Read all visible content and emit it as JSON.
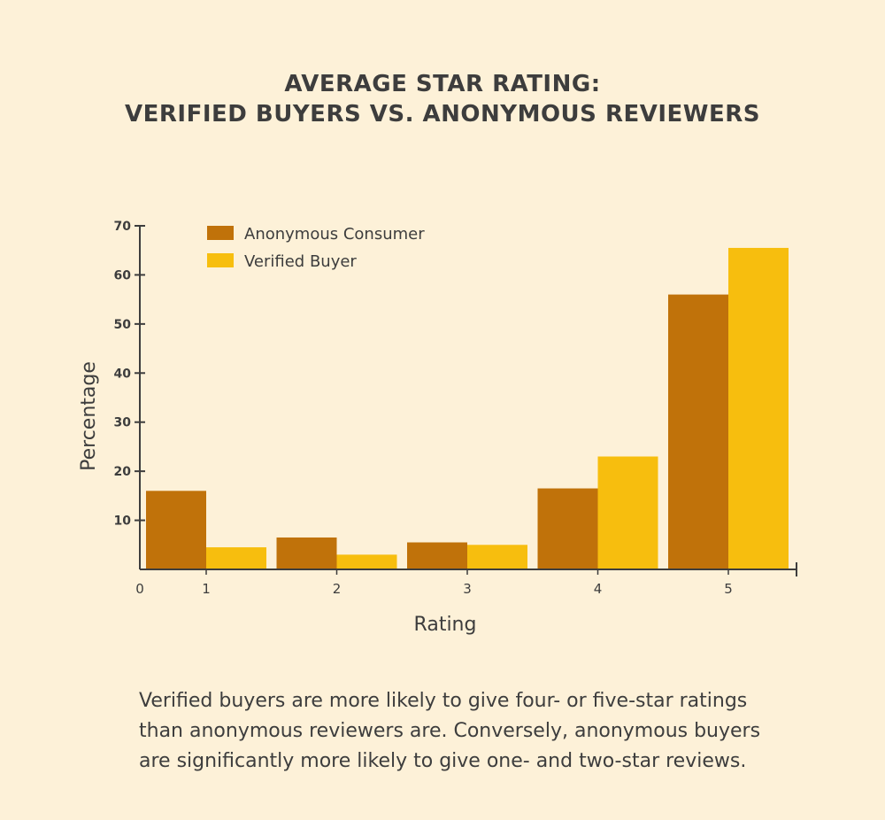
{
  "chart_data": {
    "type": "bar",
    "title_lines": [
      "AVERAGE STAR RATING:",
      "VERIFIED BUYERS VS. ANONYMOUS REVIEWERS"
    ],
    "xlabel": "Rating",
    "ylabel": "Percentage",
    "categories": [
      "1",
      "2",
      "3",
      "4",
      "5"
    ],
    "x_origin_label": "0",
    "yticks": [
      10,
      20,
      30,
      40,
      50,
      60,
      70
    ],
    "ylim": [
      0,
      70
    ],
    "grid": false,
    "legend_position": "top-left",
    "series": [
      {
        "name": "Anonymous Consumer",
        "color": "#c0720a",
        "values": [
          16,
          6.5,
          5.5,
          16.5,
          56
        ]
      },
      {
        "name": "Verified Buyer",
        "color": "#f7be0e",
        "values": [
          4.5,
          3,
          5,
          23,
          65.5
        ]
      }
    ]
  },
  "caption": "Verified buyers are more likely to give four- or five-star ratings than anonymous reviewers are. Conversely, anonymous buyers are significantly more likely to give one- and two-star reviews."
}
